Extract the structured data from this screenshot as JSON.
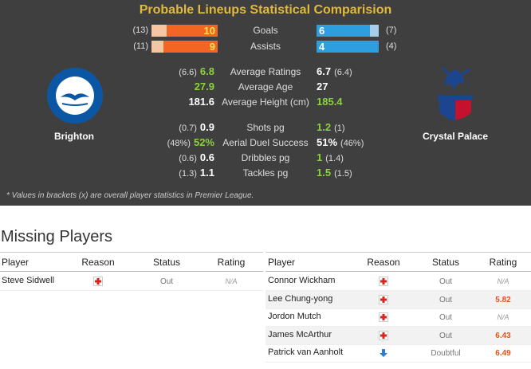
{
  "header": {
    "title": "Probable Lineups Statistical Comparision"
  },
  "comparison": {
    "home_team": "Brighton",
    "away_team": "Crystal Palace",
    "bars": [
      {
        "label": "Goals",
        "home": 10,
        "home_overall": {
          "value": 13,
          "label": "(13)"
        },
        "away": 6,
        "away_overall": {
          "value": 7,
          "label": "(7)"
        }
      },
      {
        "label": "Assists",
        "home": 9,
        "home_overall": {
          "value": 11,
          "label": "(11)"
        },
        "away": 4,
        "away_overall": {
          "value": 4,
          "label": "(4)"
        }
      }
    ],
    "stats": [
      {
        "label": "Average Ratings",
        "home": "6.8",
        "home_overall": "(6.6)",
        "away": "6.7",
        "away_overall": "(6.4)"
      },
      {
        "label": "Average Age",
        "home": "27.9",
        "away": "27"
      },
      {
        "label": "Average Height (cm)",
        "home": "181.6",
        "away": "185.4"
      },
      {
        "label": "Shots pg",
        "home": "0.9",
        "home_overall": "(0.7)",
        "away": "1.2",
        "away_overall": "(1)"
      },
      {
        "label": "Aerial Duel Success",
        "home": "52%",
        "home_overall": "(48%)",
        "away": "51%",
        "away_overall": "(46%)"
      },
      {
        "label": "Dribbles pg",
        "home": "0.6",
        "home_overall": "(0.6)",
        "away": "1",
        "away_overall": "(1.4)"
      },
      {
        "label": "Tackles pg",
        "home": "1.1",
        "home_overall": "(1.3)",
        "away": "1.5",
        "away_overall": "(1.5)"
      }
    ],
    "note": "* Values in brackets (x) are overall player statistics in Premier League."
  },
  "missing": {
    "title": "Missing Players",
    "home": {
      "headers": [
        "Player",
        "Reason",
        "Status",
        "Rating"
      ],
      "rows": [
        {
          "player": "Steve Sidwell",
          "status": "Out",
          "rating": "N/A"
        }
      ]
    },
    "away": {
      "headers": [
        "Player",
        "Reason",
        "Status",
        "Rating"
      ],
      "rows": [
        {
          "player": "Connor Wickham",
          "status": "Out",
          "rating": "N/A"
        },
        {
          "player": "Lee Chung-yong",
          "status": "Out",
          "rating": "5.82"
        },
        {
          "player": "Jordon Mutch",
          "status": "Out",
          "rating": "N/A"
        },
        {
          "player": "James McArthur",
          "status": "Out",
          "rating": "6.43"
        },
        {
          "player": "Patrick van Aanholt",
          "status": "Doubtful",
          "rating": "6.49"
        }
      ]
    }
  }
}
